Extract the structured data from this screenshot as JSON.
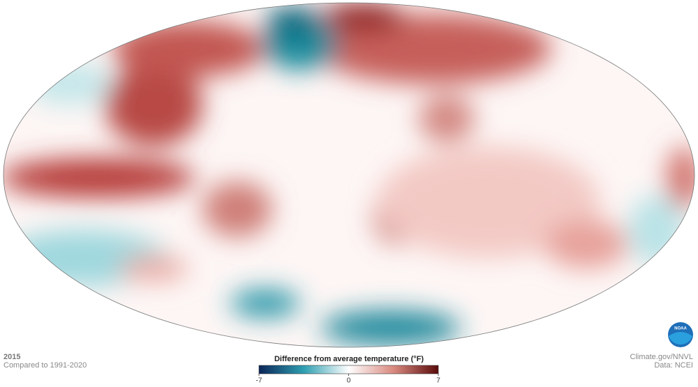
{
  "map": {
    "year": "2015",
    "baseline": "Compared to 1991-2020",
    "credit": "Climate.gov/NNVL",
    "source": "Data: NCEI"
  },
  "legend": {
    "title": "Difference from average temperature (°F)",
    "lim": [
      -7,
      7
    ],
    "ticks": [
      -7,
      0,
      7
    ]
  }
}
